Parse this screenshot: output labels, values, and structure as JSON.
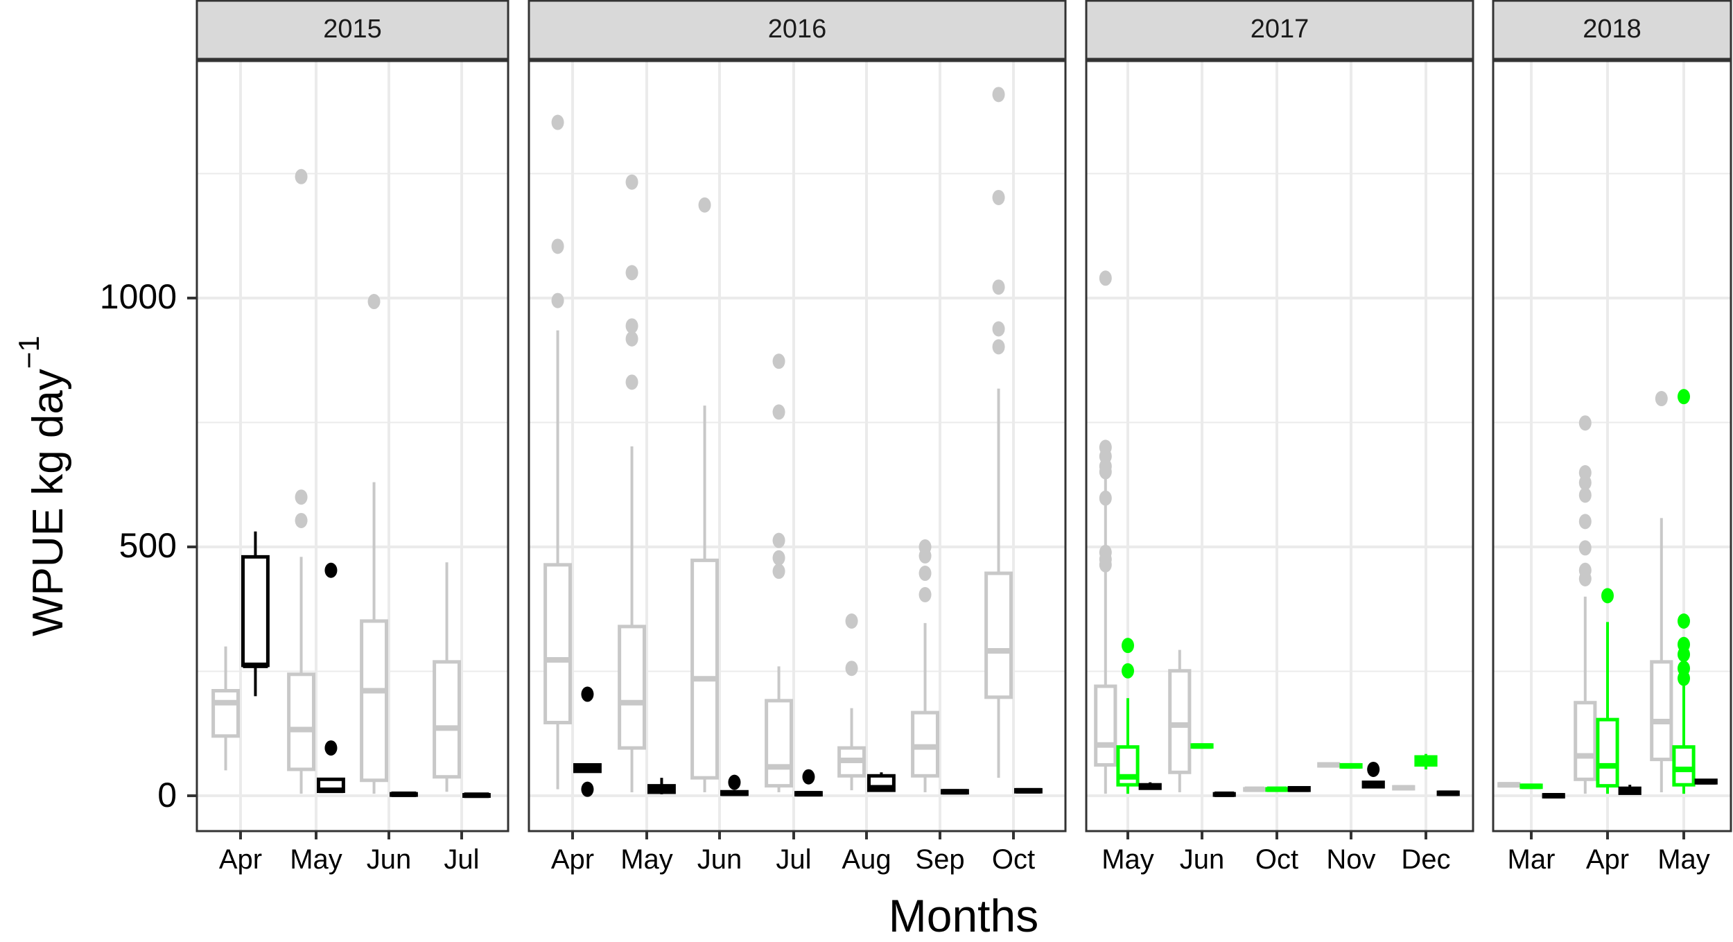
{
  "chart_data": {
    "type": "boxplot",
    "title": "",
    "xlabel": "Months",
    "ylabel": "WPUE kg day",
    "ylabel_superscript": "−1",
    "ylim": [
      -60,
      1475
    ],
    "yticks": [
      0,
      500,
      1000
    ],
    "grid": true,
    "legend": null,
    "series_colors": {
      "gray": "#c8c8c8",
      "green": "#00ff00",
      "black": "#000000"
    },
    "facets": [
      {
        "label": "2015",
        "categories": [
          "Apr",
          "May",
          "Jun",
          "Jul"
        ],
        "groups": [
          {
            "month": "Apr",
            "series": "gray",
            "min": 51,
            "q1": 120,
            "median": 187,
            "q3": 211,
            "max": 300,
            "outliers": []
          },
          {
            "month": "Apr",
            "series": "black",
            "min": 200,
            "q1": 262,
            "median": 262,
            "q3": 480,
            "max": 531,
            "outliers": []
          },
          {
            "month": "May",
            "series": "gray",
            "min": 4,
            "q1": 53,
            "median": 133,
            "q3": 244,
            "max": 480,
            "outliers": [
              1244,
              600,
              553
            ]
          },
          {
            "month": "May",
            "series": "black",
            "min": 9,
            "q1": 9,
            "median": 11,
            "q3": 33,
            "max": 33,
            "outliers": [
              453,
              96
            ]
          },
          {
            "month": "Jun",
            "series": "gray",
            "min": 4,
            "q1": 31,
            "median": 211,
            "q3": 351,
            "max": 630,
            "outliers": [
              993
            ]
          },
          {
            "month": "Jun",
            "series": "black",
            "min": 2,
            "q1": 2,
            "median": 3,
            "q3": 4,
            "max": 4,
            "outliers": []
          },
          {
            "month": "Jul",
            "series": "gray",
            "min": 8,
            "q1": 38,
            "median": 136,
            "q3": 269,
            "max": 469,
            "outliers": []
          },
          {
            "month": "Jul",
            "series": "black",
            "min": 0,
            "q1": 0,
            "median": 1,
            "q3": 2,
            "max": 2,
            "outliers": []
          }
        ]
      },
      {
        "label": "2016",
        "categories": [
          "Apr",
          "May",
          "Jun",
          "Jul",
          "Aug",
          "Sep",
          "Oct"
        ],
        "groups": [
          {
            "month": "Apr",
            "series": "gray",
            "min": 13,
            "q1": 147,
            "median": 273,
            "q3": 464,
            "max": 935,
            "outliers": [
              1353,
              1104,
              995
            ]
          },
          {
            "month": "Apr",
            "series": "black",
            "min": 49,
            "q1": 49,
            "median": 53,
            "q3": 62,
            "max": 62,
            "outliers": [
              204,
              13
            ]
          },
          {
            "month": "May",
            "series": "gray",
            "min": 7,
            "q1": 96,
            "median": 187,
            "q3": 340,
            "max": 702,
            "outliers": [
              1233,
              1051,
              944,
              918,
              831
            ]
          },
          {
            "month": "May",
            "series": "black",
            "min": 3,
            "q1": 7,
            "median": 13,
            "q3": 20,
            "max": 36,
            "outliers": []
          },
          {
            "month": "Jun",
            "series": "gray",
            "min": 7,
            "q1": 36,
            "median": 235,
            "q3": 473,
            "max": 784,
            "outliers": [
              1187
            ]
          },
          {
            "month": "Jun",
            "series": "black",
            "min": 2,
            "q1": 3,
            "median": 5,
            "q3": 8,
            "max": 8,
            "outliers": [
              27
            ]
          },
          {
            "month": "Jul",
            "series": "gray",
            "min": 7,
            "q1": 20,
            "median": 58,
            "q3": 191,
            "max": 260,
            "outliers": [
              873,
              771,
              513,
              478,
              451
            ]
          },
          {
            "month": "Jul",
            "series": "black",
            "min": 1,
            "q1": 2,
            "median": 4,
            "q3": 6,
            "max": 6,
            "outliers": [
              38
            ]
          },
          {
            "month": "Aug",
            "series": "gray",
            "min": 11,
            "q1": 40,
            "median": 71,
            "q3": 96,
            "max": 176,
            "outliers": [
              351,
              256
            ]
          },
          {
            "month": "Aug",
            "series": "black",
            "min": 11,
            "q1": 11,
            "median": 16,
            "q3": 40,
            "max": 47,
            "outliers": []
          },
          {
            "month": "Sep",
            "series": "gray",
            "min": 7,
            "q1": 40,
            "median": 98,
            "q3": 167,
            "max": 347,
            "outliers": [
              500,
              482,
              447,
              404
            ]
          },
          {
            "month": "Sep",
            "series": "black",
            "min": 6,
            "q1": 6,
            "median": 8,
            "q3": 10,
            "max": 10,
            "outliers": []
          },
          {
            "month": "Oct",
            "series": "gray",
            "min": 36,
            "q1": 198,
            "median": 291,
            "q3": 447,
            "max": 818,
            "outliers": [
              1409,
              1202,
              1022,
              938,
              902
            ]
          },
          {
            "month": "Oct",
            "series": "black",
            "min": 8,
            "q1": 8,
            "median": 10,
            "q3": 12,
            "max": 12,
            "outliers": []
          }
        ]
      },
      {
        "label": "2017",
        "categories": [
          "May",
          "Jun",
          "Oct",
          "Nov",
          "Dec"
        ],
        "groups": [
          {
            "month": "May",
            "series": "gray",
            "min": 4,
            "q1": 62,
            "median": 102,
            "q3": 220,
            "max": 700,
            "outliers": [
              1040,
              700,
              682,
              662,
              651,
              598,
              489,
              475,
              464
            ]
          },
          {
            "month": "May",
            "series": "green",
            "min": 4,
            "q1": 22,
            "median": 38,
            "q3": 98,
            "max": 196,
            "outliers": [
              302,
              251
            ]
          },
          {
            "month": "May",
            "series": "black",
            "min": 13,
            "q1": 15,
            "median": 18,
            "q3": 22,
            "max": 27,
            "outliers": []
          },
          {
            "month": "Jun",
            "series": "gray",
            "min": 7,
            "q1": 47,
            "median": 142,
            "q3": 251,
            "max": 293,
            "outliers": []
          },
          {
            "month": "Jun",
            "series": "green",
            "min": 98,
            "q1": 98,
            "median": 100,
            "q3": 102,
            "max": 102,
            "outliers": []
          },
          {
            "month": "Jun",
            "series": "black",
            "min": 2,
            "q1": 2,
            "median": 3,
            "q3": 4,
            "max": 4,
            "outliers": []
          },
          {
            "month": "Oct",
            "series": "gray",
            "min": 12,
            "q1": 12,
            "median": 13,
            "q3": 14,
            "max": 14,
            "outliers": []
          },
          {
            "month": "Oct",
            "series": "green",
            "min": 12,
            "q1": 12,
            "median": 13,
            "q3": 14,
            "max": 14,
            "outliers": []
          },
          {
            "month": "Oct",
            "series": "black",
            "min": 11,
            "q1": 11,
            "median": 13,
            "q3": 16,
            "max": 16,
            "outliers": []
          },
          {
            "month": "Nov",
            "series": "gray",
            "min": 60,
            "q1": 60,
            "median": 62,
            "q3": 64,
            "max": 64,
            "outliers": []
          },
          {
            "month": "Nov",
            "series": "green",
            "min": 58,
            "q1": 58,
            "median": 60,
            "q3": 62,
            "max": 62,
            "outliers": []
          },
          {
            "month": "Nov",
            "series": "black",
            "min": 18,
            "q1": 18,
            "median": 22,
            "q3": 27,
            "max": 27,
            "outliers": [
              53
            ]
          },
          {
            "month": "Dec",
            "series": "gray",
            "min": 14,
            "q1": 14,
            "median": 16,
            "q3": 18,
            "max": 18,
            "outliers": []
          },
          {
            "month": "Dec",
            "series": "green",
            "min": 53,
            "q1": 62,
            "median": 69,
            "q3": 78,
            "max": 84,
            "outliers": []
          },
          {
            "month": "Dec",
            "series": "black",
            "min": 3,
            "q1": 3,
            "median": 5,
            "q3": 7,
            "max": 7,
            "outliers": []
          }
        ]
      },
      {
        "label": "2018",
        "categories": [
          "Mar",
          "Apr",
          "May"
        ],
        "groups": [
          {
            "month": "Mar",
            "series": "gray",
            "min": 20,
            "q1": 20,
            "median": 22,
            "q3": 24,
            "max": 24,
            "outliers": []
          },
          {
            "month": "Mar",
            "series": "green",
            "min": 17,
            "q1": 17,
            "median": 19,
            "q3": 21,
            "max": 21,
            "outliers": []
          },
          {
            "month": "Mar",
            "series": "black",
            "min": -2,
            "q1": -2,
            "median": 0,
            "q3": 2,
            "max": 2,
            "outliers": []
          },
          {
            "month": "Apr",
            "series": "gray",
            "min": 4,
            "q1": 33,
            "median": 80,
            "q3": 187,
            "max": 400,
            "outliers": [
              749,
              649,
              629,
              604,
              551,
              498,
              453,
              436
            ]
          },
          {
            "month": "Apr",
            "series": "green",
            "min": 4,
            "q1": 20,
            "median": 60,
            "q3": 153,
            "max": 349,
            "outliers": [
              402
            ]
          },
          {
            "month": "Apr",
            "series": "black",
            "min": 3,
            "q1": 5,
            "median": 10,
            "q3": 15,
            "max": 22,
            "outliers": []
          },
          {
            "month": "May",
            "series": "gray",
            "min": 7,
            "q1": 73,
            "median": 149,
            "q3": 269,
            "max": 558,
            "outliers": [
              798
            ]
          },
          {
            "month": "May",
            "series": "green",
            "min": 4,
            "q1": 22,
            "median": 53,
            "q3": 98,
            "max": 229,
            "outliers": [
              802,
              351,
              304,
              284,
              256,
              236
            ]
          },
          {
            "month": "May",
            "series": "black",
            "min": 26,
            "q1": 26,
            "median": 28,
            "q3": 31,
            "max": 31,
            "outliers": []
          }
        ]
      }
    ]
  },
  "labels": {
    "facet_2015": "2015",
    "facet_2016": "2016",
    "facet_2017": "2017",
    "facet_2018": "2018",
    "y_ticks": [
      "0",
      "500",
      "1000"
    ],
    "x_title": "Months",
    "y_title": "WPUE kg day",
    "y_title_sup": "−1"
  }
}
